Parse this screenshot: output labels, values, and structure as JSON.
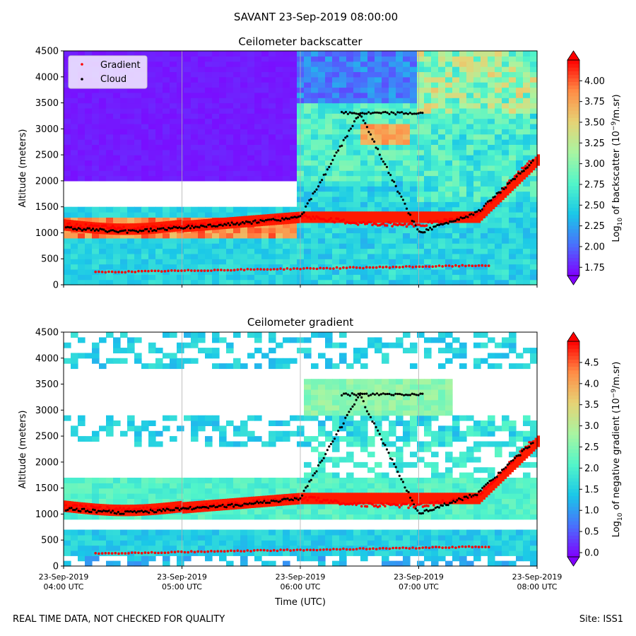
{
  "suptitle": "SAVANT 23-Sep-2019 08:00:00",
  "footer_left": "REAL TIME DATA, NOT CHECKED FOR QUALITY",
  "footer_right": "Site: ISS1",
  "colors": {
    "gradient_marker": "#ff0000",
    "cloud_marker": "#000000",
    "colormap": [
      "#8000ff",
      "#4a6ffc",
      "#1ac7e8",
      "#52f5c9",
      "#a8f5a1",
      "#e6d375",
      "#ff8c46",
      "#ff0000"
    ]
  },
  "chart_data": [
    {
      "type": "heatmap",
      "title": "Ceilometer backscatter",
      "ylabel": "Altitude (meters)",
      "xlabel": "",
      "ylim": [
        0,
        4500
      ],
      "yticks": [
        "0",
        "500",
        "1000",
        "1500",
        "2000",
        "2500",
        "3000",
        "3500",
        "4000",
        "4500"
      ],
      "xticks": [
        "",
        "",
        "",
        "",
        ""
      ],
      "grid": "vertical",
      "legend": {
        "placement": "top-left",
        "entries": [
          "Gradient",
          "Cloud"
        ]
      },
      "colorbar": {
        "label_prefix": "Log",
        "label_sub": "10",
        "label_mid": " of backscatter (10",
        "label_sup": "−9",
        "label_end": "/m.sr)",
        "min": 1.65,
        "max": 4.25,
        "ticks": [
          "1.75",
          "2.00",
          "2.25",
          "2.50",
          "2.75",
          "3.00",
          "3.25",
          "3.50",
          "3.75",
          "4.00"
        ],
        "tick_values": [
          1.75,
          2.0,
          2.25,
          2.5,
          2.75,
          3.0,
          3.25,
          3.5,
          3.75,
          4.0
        ]
      },
      "series": [
        {
          "name": "Gradient",
          "x": [
            0.0,
            0.5,
            1.0,
            1.5,
            2.0,
            2.5,
            3.0,
            3.5,
            4.0
          ],
          "y": [
            1150,
            1080,
            1120,
            1200,
            1320,
            1180,
            1150,
            1350,
            2500
          ]
        },
        {
          "name": "Cloud",
          "x": [
            0.0,
            0.5,
            1.0,
            1.5,
            2.0,
            2.5,
            3.0,
            3.5,
            4.0
          ],
          "y": [
            1100,
            1020,
            1100,
            1180,
            1300,
            3300,
            1000,
            1400,
            2450
          ]
        }
      ]
    },
    {
      "type": "heatmap",
      "title": "Ceilometer gradient",
      "ylabel": "Altitude (meters)",
      "xlabel": "Time (UTC)",
      "ylim": [
        0,
        4500
      ],
      "yticks": [
        "0",
        "500",
        "1000",
        "1500",
        "2000",
        "2500",
        "3000",
        "3500",
        "4000",
        "4500"
      ],
      "xticks": [
        "23-Sep-2019\n04:00 UTC",
        "23-Sep-2019\n05:00 UTC",
        "23-Sep-2019\n06:00 UTC",
        "23-Sep-2019\n07:00 UTC",
        "23-Sep-2019\n08:00 UTC"
      ],
      "grid": "vertical",
      "colorbar": {
        "label_prefix": "Log",
        "label_sub": "10",
        "label_mid": " of negative gradient (10",
        "label_sup": "−9",
        "label_end": "/m.sr)",
        "min": -0.1,
        "max": 5.0,
        "ticks": [
          "0.0",
          "0.5",
          "1.0",
          "1.5",
          "2.0",
          "2.5",
          "3.0",
          "3.5",
          "4.0",
          "4.5"
        ],
        "tick_values": [
          0.0,
          0.5,
          1.0,
          1.5,
          2.0,
          2.5,
          3.0,
          3.5,
          4.0,
          4.5
        ]
      }
    }
  ]
}
